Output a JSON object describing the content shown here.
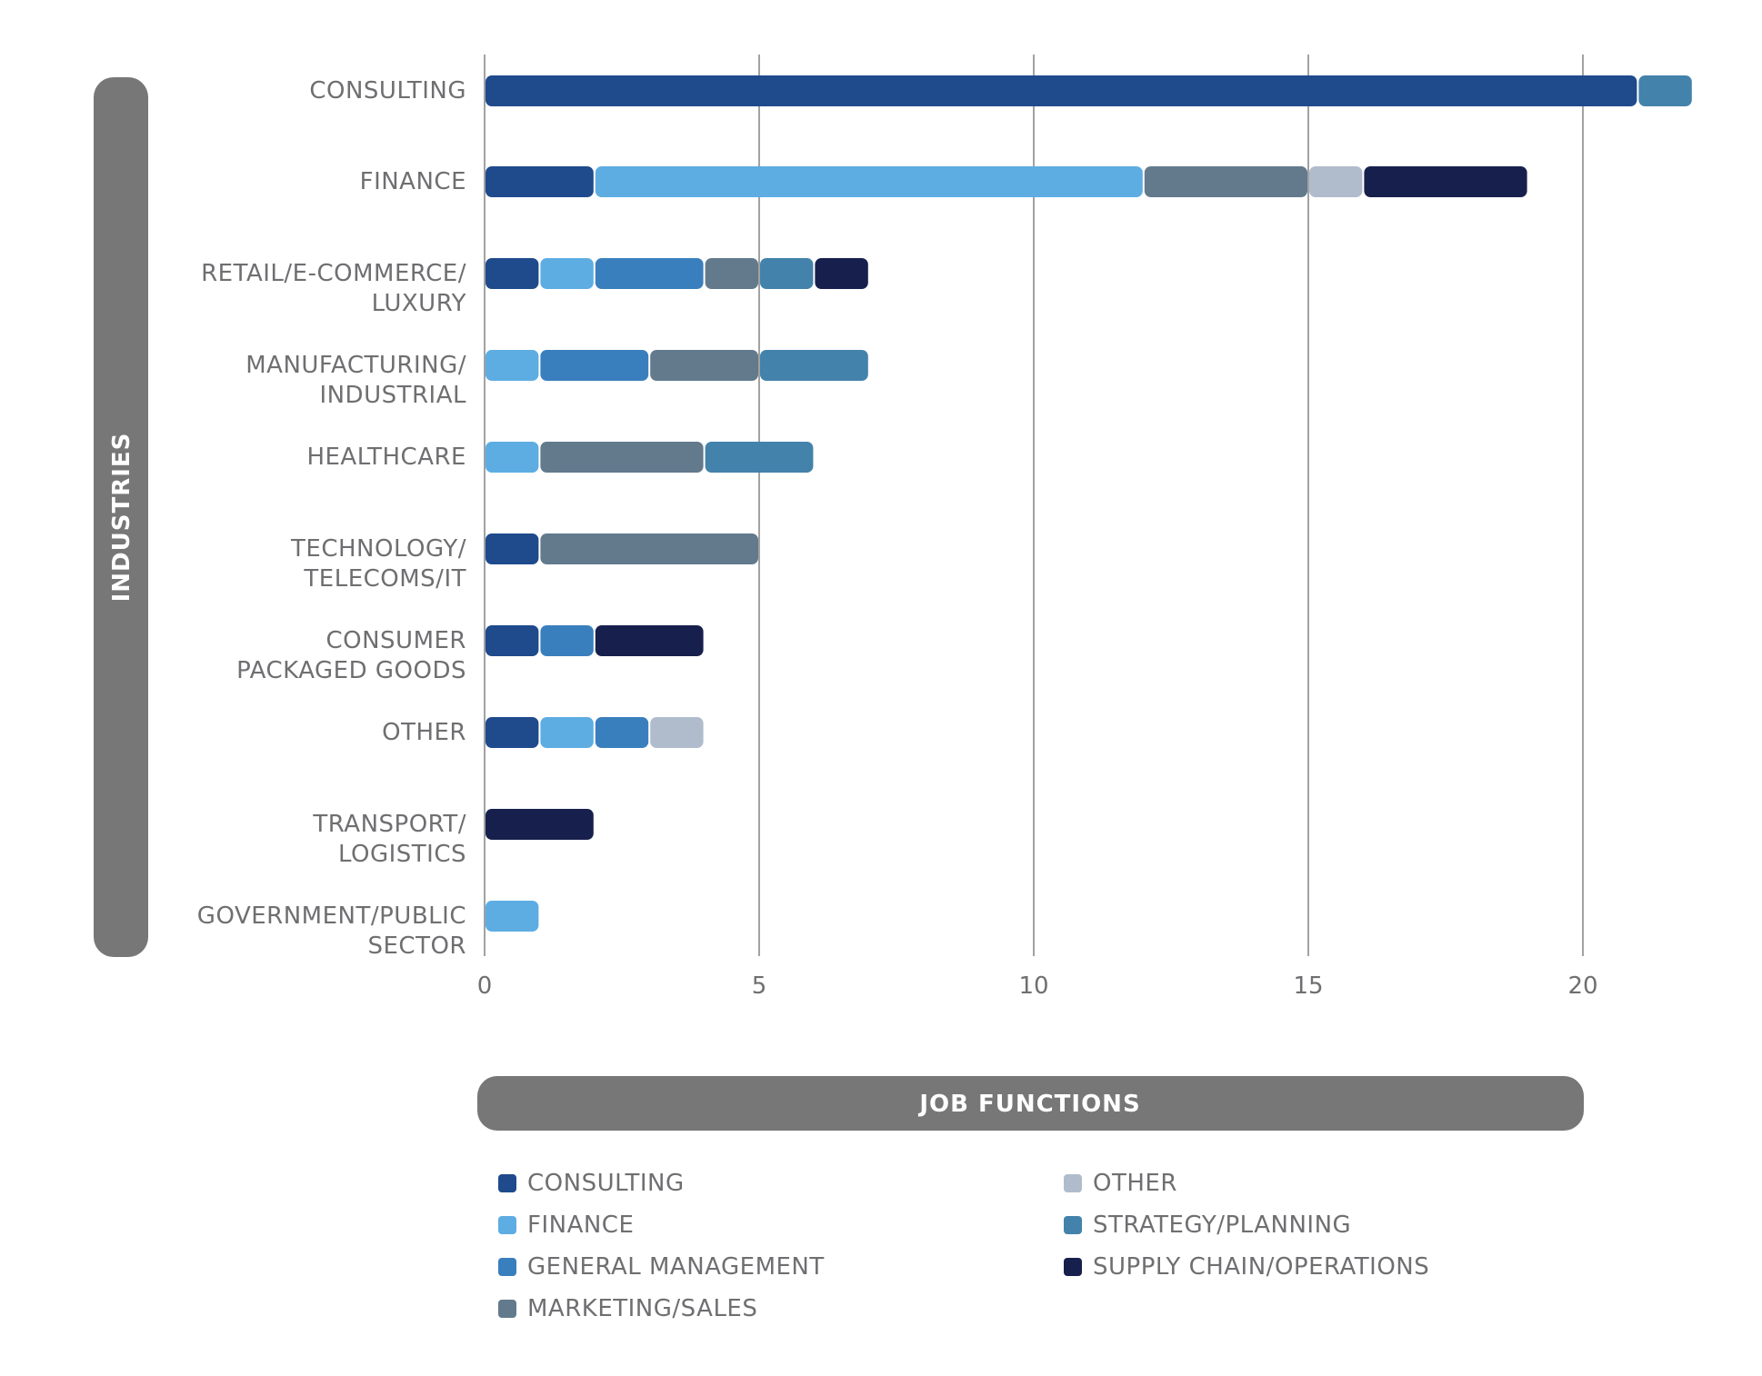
{
  "chart_data": {
    "type": "bar",
    "orientation": "horizontal",
    "stacked": true,
    "title": "",
    "xlabel": "JOB FUNCTIONS",
    "ylabel": "INDUSTRIES",
    "xlim": [
      0,
      22
    ],
    "xticks": [
      "0",
      "5",
      "10",
      "15",
      "20"
    ],
    "xtick_values": [
      0,
      5,
      10,
      15,
      20
    ],
    "grid": true,
    "legend_position": "bottom",
    "categories": [
      [
        "CONSULTING"
      ],
      [
        "FINANCE"
      ],
      [
        "RETAIL/E-COMMERCE/",
        "LUXURY"
      ],
      [
        "MANUFACTURING/",
        "INDUSTRIAL"
      ],
      [
        "HEALTHCARE"
      ],
      [
        "TECHNOLOGY/",
        "TELECOMS/IT"
      ],
      [
        "CONSUMER",
        "PACKAGED GOODS"
      ],
      [
        "OTHER"
      ],
      [
        "TRANSPORT/",
        "LOGISTICS"
      ],
      [
        "GOVERNMENT/PUBLIC",
        "SECTOR"
      ]
    ],
    "series": [
      {
        "name": "CONSULTING",
        "color": "#1f4a8c",
        "values": [
          21,
          2,
          1,
          0,
          0,
          1,
          1,
          1,
          0,
          0
        ]
      },
      {
        "name": "FINANCE",
        "color": "#5dade2",
        "values": [
          0,
          10,
          1,
          1,
          1,
          0,
          0,
          1,
          0,
          1
        ]
      },
      {
        "name": "GENERAL MANAGEMENT",
        "color": "#3a7fbd",
        "values": [
          0,
          0,
          2,
          2,
          0,
          0,
          1,
          1,
          0,
          0
        ]
      },
      {
        "name": "MARKETING/SALES",
        "color": "#627a8c",
        "values": [
          0,
          3,
          1,
          2,
          3,
          4,
          0,
          0,
          0,
          0
        ]
      },
      {
        "name": "OTHER",
        "color": "#b0bccc",
        "values": [
          0,
          1,
          0,
          0,
          0,
          0,
          0,
          1,
          0,
          0
        ]
      },
      {
        "name": "STRATEGY/PLANNING",
        "color": "#4382aa",
        "values": [
          1,
          0,
          1,
          2,
          2,
          0,
          0,
          0,
          0,
          0
        ]
      },
      {
        "name": "SUPPLY CHAIN/OPERATIONS",
        "color": "#17204d",
        "values": [
          0,
          3,
          1,
          0,
          0,
          0,
          2,
          0,
          2,
          0
        ]
      }
    ],
    "legend_columns": [
      [
        "CONSULTING",
        "FINANCE",
        "GENERAL MANAGEMENT",
        "MARKETING/SALES"
      ],
      [
        "OTHER",
        "STRATEGY/PLANNING",
        "SUPPLY CHAIN/OPERATIONS"
      ]
    ]
  },
  "colors": {
    "axis_title_bg": "#777777",
    "gridline": "#8a8a8a",
    "text": "#6f6f72"
  }
}
